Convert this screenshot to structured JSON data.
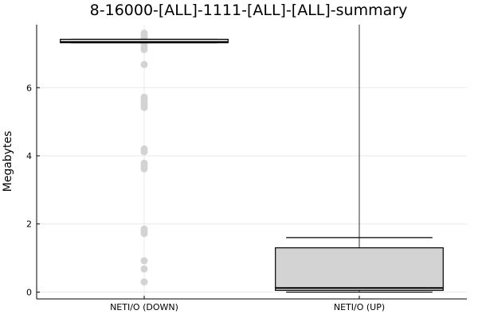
{
  "chart_data": {
    "type": "box",
    "title": "8-16000-[ALL]-1111-[ALL]-[ALL]-summary",
    "ylabel": "Megabytes",
    "ylim": [
      -0.2,
      7.85
    ],
    "yticks": [
      0,
      2,
      4,
      6
    ],
    "grid": true,
    "categories": [
      "NETI/O (DOWN)",
      "NETI/O (UP)"
    ],
    "boxes": [
      {
        "category": "NETI/O (DOWN)",
        "min": 7.32,
        "q1": 7.32,
        "median": 7.34,
        "q3": 7.42,
        "max": 7.42,
        "outliers": [
          0.3,
          0.68,
          0.92,
          1.72,
          1.78,
          1.85,
          3.62,
          3.7,
          3.78,
          4.12,
          4.2,
          5.42,
          5.5,
          5.58,
          5.66,
          5.72,
          6.68,
          7.12,
          7.2,
          7.3,
          7.45,
          7.52,
          7.6
        ]
      },
      {
        "category": "NETI/O (UP)",
        "min": 0.0,
        "q1": 0.05,
        "median": 0.12,
        "q3": 1.3,
        "max": 7.85,
        "cap": 1.6
      }
    ],
    "colors": {
      "box_fill": "#d3d3d3",
      "outlier": "#d3d3d3",
      "line": "#000000",
      "grid": "#e8e8e8"
    }
  }
}
